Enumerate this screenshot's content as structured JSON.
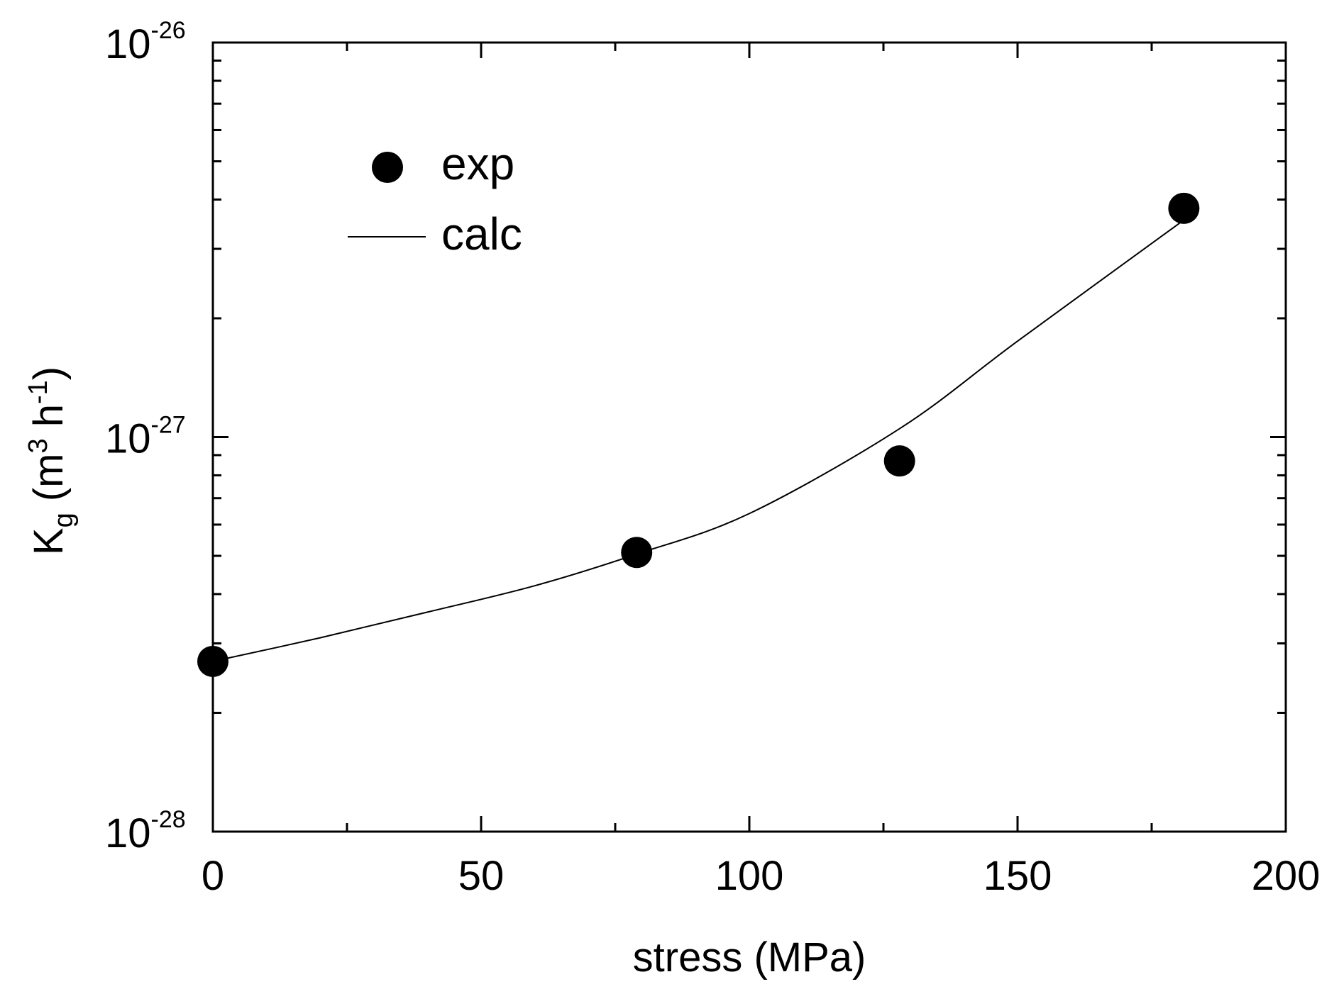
{
  "chart_data": {
    "type": "scatter",
    "xlabel": "stress (MPa)",
    "ylabel": {
      "base": "K",
      "sub": "g",
      "unit_open": " (m",
      "unit_exp1": "3",
      "unit_mid": " h",
      "unit_exp2": "-1",
      "unit_close": ")"
    },
    "xlim": [
      0,
      200
    ],
    "ylim": [
      1e-28,
      1e-26
    ],
    "yscale": "log",
    "x_ticks": [
      {
        "value": 0,
        "label": "0"
      },
      {
        "value": 50,
        "label": "50"
      },
      {
        "value": 100,
        "label": "100"
      },
      {
        "value": 150,
        "label": "150"
      },
      {
        "value": 200,
        "label": "200"
      }
    ],
    "y_ticks": [
      {
        "value": 1e-28,
        "base": "10",
        "exp": "-28"
      },
      {
        "value": 1e-27,
        "base": "10",
        "exp": "-27"
      },
      {
        "value": 1e-26,
        "base": "10",
        "exp": "-26"
      }
    ],
    "series": [
      {
        "name": "exp",
        "style": "marker",
        "points": [
          {
            "x": 0,
            "y": 2.7e-28
          },
          {
            "x": 79,
            "y": 5.1e-28
          },
          {
            "x": 128,
            "y": 8.7e-28
          },
          {
            "x": 181,
            "y": 3.8e-27
          }
        ]
      },
      {
        "name": "calc",
        "style": "line",
        "points": [
          {
            "x": 0,
            "y": 2.7e-28
          },
          {
            "x": 20,
            "y": 3.1e-28
          },
          {
            "x": 40,
            "y": 3.6e-28
          },
          {
            "x": 60,
            "y": 4.2e-28
          },
          {
            "x": 79,
            "y": 5.05e-28
          },
          {
            "x": 100,
            "y": 6.4e-28
          },
          {
            "x": 128,
            "y": 1.05e-27
          },
          {
            "x": 150,
            "y": 1.75e-27
          },
          {
            "x": 181,
            "y": 3.55e-27
          }
        ]
      }
    ],
    "legend": {
      "position": "top-left",
      "entries": [
        {
          "label": "exp",
          "style": "marker"
        },
        {
          "label": "calc",
          "style": "line"
        }
      ]
    }
  }
}
